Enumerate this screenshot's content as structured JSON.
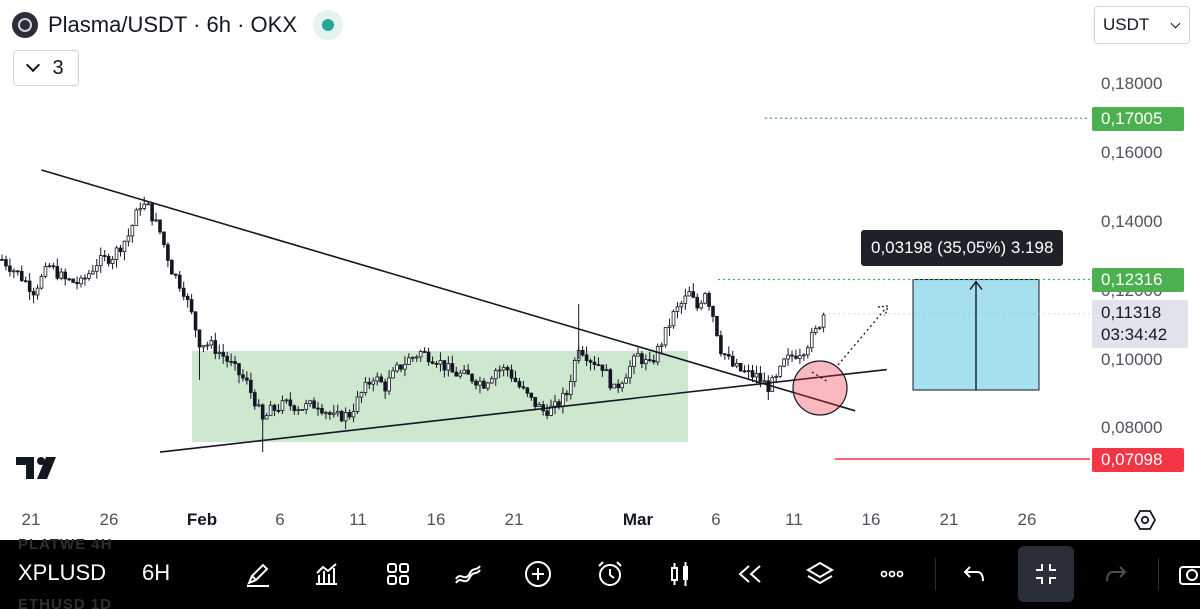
{
  "header": {
    "title": "Plasma/USDT · 6h · OKX",
    "indicator_count": "3",
    "currency": "USDT"
  },
  "price_axis": {
    "ticks": [
      "0,18000",
      "0,16000",
      "0,14000",
      "0,12000",
      "0,10000",
      "0,08000"
    ],
    "target_label": "0,17005",
    "entry_label": "0,12316",
    "last_price": "0,11318",
    "countdown": "03:34:42",
    "stop_label": "0,07098"
  },
  "measure": {
    "label": "0,03198 (35,05%) 3.198"
  },
  "time_axis": {
    "ticks": [
      "21",
      "26",
      "Feb",
      "6",
      "11",
      "16",
      "21",
      "Mar",
      "6",
      "11",
      "16",
      "21",
      "26"
    ]
  },
  "toolbar": {
    "symbol": "XPLUSD",
    "interval": "6H",
    "ghost_top": "PLATWE    4H",
    "ghost_bottom": "ETHUSD    1D",
    "buttons": [
      "pen-icon",
      "indicators-icon",
      "layout-icon",
      "drawing-tools-icon",
      "add-icon",
      "alert-icon",
      "candles-icon",
      "replay-icon",
      "layers-icon",
      "more-icon",
      "undo-icon",
      "fullscreen-exit-icon",
      "redo-icon",
      "screenshot-icon"
    ]
  },
  "colors": {
    "accent_green": "#4caf50",
    "accent_red": "#f23645",
    "consolidation_zone": "#c8e6c9",
    "target_box": "#a6dff0"
  },
  "chart_data": {
    "type": "candlestick",
    "series_interval": "6h",
    "y_range": [
      0.065,
      0.185
    ],
    "levels": {
      "target": 0.17005,
      "entry": 0.12316,
      "stop": 0.07098,
      "last": 0.11318
    },
    "x_ticks": [
      "21",
      "26",
      "Feb",
      "6",
      "11",
      "16",
      "21",
      "Mar",
      "6",
      "11",
      "16",
      "21",
      "26"
    ],
    "close_path": [
      [
        0,
        0.129
      ],
      [
        4,
        0.125
      ],
      [
        8,
        0.12
      ],
      [
        12,
        0.127
      ],
      [
        16,
        0.123
      ],
      [
        20,
        0.122
      ],
      [
        24,
        0.128
      ],
      [
        28,
        0.13
      ],
      [
        32,
        0.136
      ],
      [
        35,
        0.145
      ],
      [
        37,
        0.144
      ],
      [
        40,
        0.137
      ],
      [
        43,
        0.126
      ],
      [
        46,
        0.12
      ],
      [
        48,
        0.113
      ],
      [
        50,
        0.105
      ],
      [
        53,
        0.104
      ],
      [
        56,
        0.101
      ],
      [
        59,
        0.097
      ],
      [
        62,
        0.093
      ],
      [
        64,
        0.088
      ],
      [
        66,
        0.082
      ],
      [
        68,
        0.085
      ],
      [
        72,
        0.087
      ],
      [
        76,
        0.086
      ],
      [
        80,
        0.087
      ],
      [
        84,
        0.083
      ],
      [
        88,
        0.084
      ],
      [
        91,
        0.09
      ],
      [
        94,
        0.095
      ],
      [
        97,
        0.092
      ],
      [
        100,
        0.097
      ],
      [
        103,
        0.1
      ],
      [
        106,
        0.102
      ],
      [
        110,
        0.1
      ],
      [
        114,
        0.096
      ],
      [
        118,
        0.095
      ],
      [
        122,
        0.093
      ],
      [
        125,
        0.097
      ],
      [
        128,
        0.097
      ],
      [
        131,
        0.092
      ],
      [
        134,
        0.088
      ],
      [
        137,
        0.085
      ],
      [
        140,
        0.086
      ],
      [
        143,
        0.09
      ],
      [
        146,
        0.104
      ],
      [
        149,
        0.1
      ],
      [
        152,
        0.098
      ],
      [
        155,
        0.091
      ],
      [
        158,
        0.096
      ],
      [
        161,
        0.101
      ],
      [
        164,
        0.098
      ],
      [
        167,
        0.105
      ],
      [
        170,
        0.113
      ],
      [
        172,
        0.116
      ],
      [
        174,
        0.119
      ],
      [
        176,
        0.115
      ],
      [
        178,
        0.12
      ],
      [
        180,
        0.113
      ],
      [
        182,
        0.103
      ],
      [
        185,
        0.098
      ],
      [
        188,
        0.096
      ],
      [
        191,
        0.095
      ],
      [
        194,
        0.092
      ],
      [
        196,
        0.094
      ],
      [
        198,
        0.099
      ],
      [
        200,
        0.101
      ],
      [
        203,
        0.103
      ],
      [
        206,
        0.108
      ],
      [
        208,
        0.1132
      ]
    ],
    "trendlines": [
      {
        "name": "descending resistance",
        "from": [
          10,
          0.155
        ],
        "to": [
          216,
          0.085
        ]
      },
      {
        "name": "ascending support",
        "from": [
          40,
          0.073
        ],
        "to": [
          224,
          0.097
        ]
      }
    ]
  }
}
